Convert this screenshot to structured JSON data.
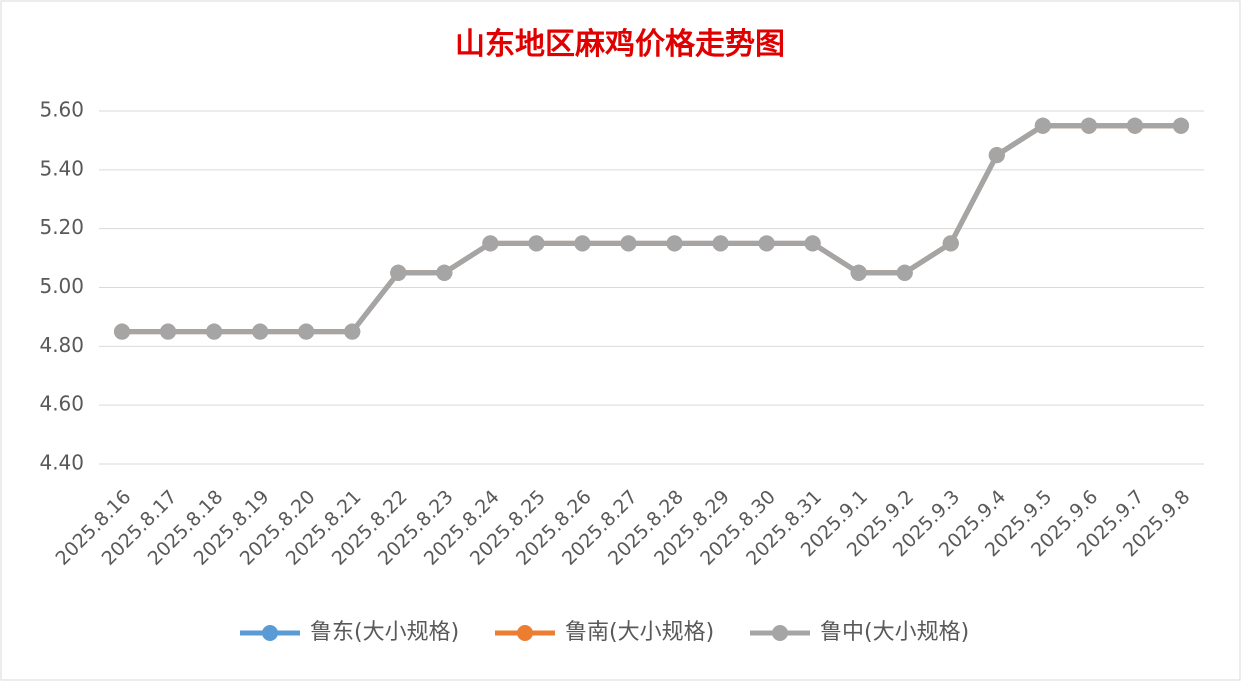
{
  "chart_data": {
    "type": "line",
    "title": "山东地区麻鸡价格走势图",
    "categories": [
      "2025.8.16",
      "2025.8.17",
      "2025.8.18",
      "2025.8.19",
      "2025.8.20",
      "2025.8.21",
      "2025.8.22",
      "2025.8.23",
      "2025.8.24",
      "2025.8.25",
      "2025.8.26",
      "2025.8.27",
      "2025.8.28",
      "2025.8.29",
      "2025.8.30",
      "2025.8.31",
      "2025.9.1",
      "2025.9.2",
      "2025.9.3",
      "2025.9.4",
      "2025.9.5",
      "2025.9.6",
      "2025.9.7",
      "2025.9.8"
    ],
    "series": [
      {
        "name": "鲁东(大小规格)",
        "color": "#5b9bd5",
        "values": [
          4.85,
          4.85,
          4.85,
          4.85,
          4.85,
          4.85,
          5.05,
          5.05,
          5.15,
          5.15,
          5.15,
          5.15,
          5.15,
          5.15,
          5.15,
          5.15,
          5.05,
          5.05,
          5.15,
          5.45,
          5.55,
          5.55,
          5.55,
          5.55
        ]
      },
      {
        "name": "鲁南(大小规格)",
        "color": "#ed7d31",
        "values": [
          4.85,
          4.85,
          4.85,
          4.85,
          4.85,
          4.85,
          5.05,
          5.05,
          5.15,
          5.15,
          5.15,
          5.15,
          5.15,
          5.15,
          5.15,
          5.15,
          5.05,
          5.05,
          5.15,
          5.45,
          5.55,
          5.55,
          5.55,
          5.55
        ]
      },
      {
        "name": "鲁中(大小规格)",
        "color": "#a5a5a5",
        "values": [
          4.85,
          4.85,
          4.85,
          4.85,
          4.85,
          4.85,
          5.05,
          5.05,
          5.15,
          5.15,
          5.15,
          5.15,
          5.15,
          5.15,
          5.15,
          5.15,
          5.05,
          5.05,
          5.15,
          5.45,
          5.55,
          5.55,
          5.55,
          5.55
        ]
      }
    ],
    "ylim": [
      4.4,
      5.6
    ],
    "yticks": [
      {
        "value": 4.4,
        "label": "4.40"
      },
      {
        "value": 4.6,
        "label": "4.60"
      },
      {
        "value": 4.8,
        "label": "4.80"
      },
      {
        "value": 5.0,
        "label": "5.00"
      },
      {
        "value": 5.2,
        "label": "5.20"
      },
      {
        "value": 5.4,
        "label": "5.40"
      },
      {
        "value": 5.6,
        "label": "5.60"
      }
    ],
    "grid": true,
    "legend": "bottom"
  }
}
